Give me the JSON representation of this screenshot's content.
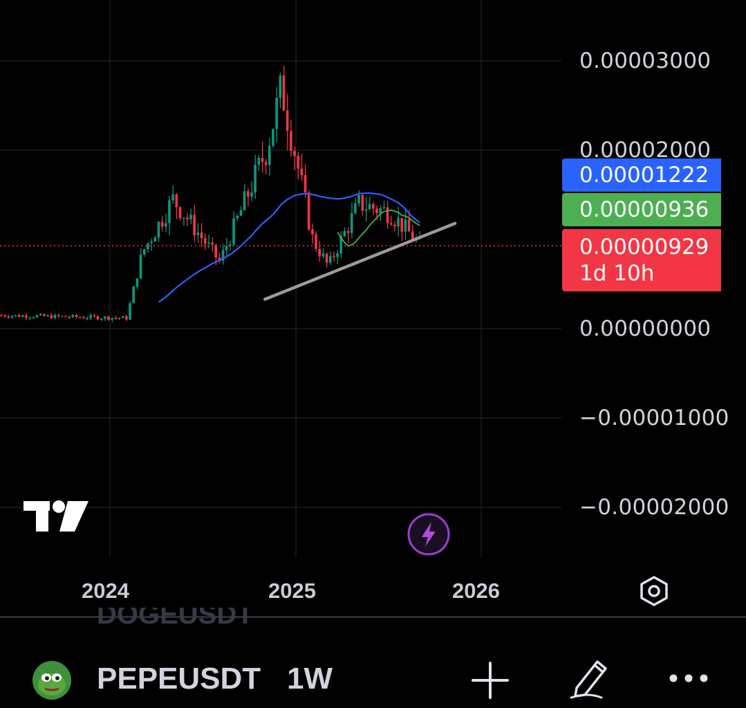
{
  "price_axis": {
    "ticks": [
      {
        "label": "0.00003000",
        "value": 3e-05
      },
      {
        "label": "0.00002000",
        "value": 2e-05
      },
      {
        "label": "0.00000000",
        "value": 0.0
      },
      {
        "label": "−0.00001000",
        "value": -1e-05
      },
      {
        "label": "−0.00002000",
        "value": -2e-05
      }
    ]
  },
  "time_axis": {
    "ticks": [
      {
        "label": "2024"
      },
      {
        "label": "2025"
      },
      {
        "label": "2026"
      }
    ]
  },
  "badges": {
    "blue": {
      "value": "0.00001222",
      "color": "#2962ff"
    },
    "green": {
      "value": "0.00000936",
      "color": "#4caf50"
    },
    "red": {
      "value": "0.00000929",
      "countdown": "1d 10h",
      "color": "#f23645"
    }
  },
  "colors": {
    "up_candle": "#089981",
    "down_candle": "#f23645",
    "ma_long": "#2962ff",
    "ma_short": "#4caf50",
    "trendline": "#9b9b9b"
  },
  "chart_data": {
    "type": "candlestick",
    "symbol": "PEPEUSDT",
    "interval": "1W",
    "last_price": 9.29e-06,
    "ma_values": [
      1.222e-05,
      9.36e-06
    ],
    "ylim": [
      -2.55e-05,
      3.5e-05
    ],
    "key_points": [
      {
        "date": "2023-06",
        "close": 1.5e-06
      },
      {
        "date": "2024-02",
        "close": 1.2e-06
      },
      {
        "date": "2024-03",
        "close": 8.5e-06
      },
      {
        "date": "2024-05",
        "close": 1.45e-05
      },
      {
        "date": "2024-08",
        "close": 7.5e-06
      },
      {
        "date": "2024-11",
        "close": 2e-05
      },
      {
        "date": "2024-12",
        "close": 2.7e-05
      },
      {
        "date": "2025-02",
        "close": 1e-05
      },
      {
        "date": "2025-03",
        "close": 7e-06
      },
      {
        "date": "2025-05",
        "close": 1.4e-05
      },
      {
        "date": "2025-07",
        "close": 1.3e-05
      },
      {
        "date": "2025-09",
        "close": 9.3e-06
      }
    ]
  },
  "toolbar": {
    "symbol": "PEPEUSDT",
    "interval": "1W",
    "ghost_symbol": "DOGEUSDT"
  }
}
